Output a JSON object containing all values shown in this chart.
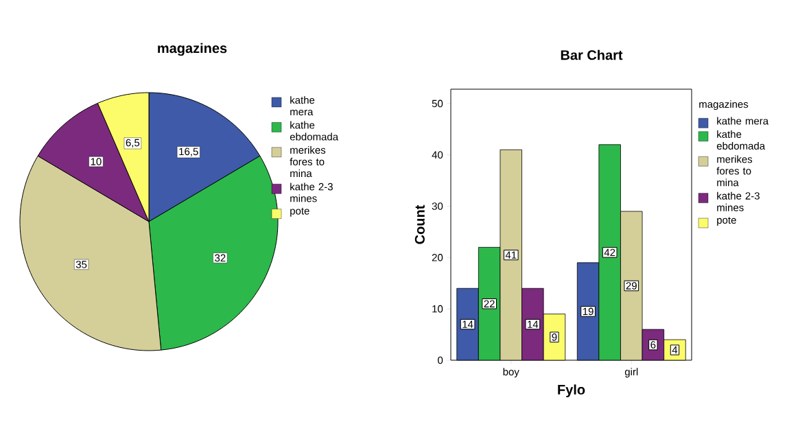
{
  "chart_data": [
    {
      "type": "pie",
      "title": "magazines",
      "categories": [
        "kathe mera",
        "kathe ebdomada",
        "merikes fores to mina",
        "kathe 2-3 mines",
        "pote"
      ],
      "values": [
        16.5,
        32,
        35,
        10,
        6.5
      ],
      "value_labels": [
        "16,5",
        "32",
        "35",
        "10",
        "6,5"
      ],
      "colors": [
        "#3e5aa8",
        "#2db84b",
        "#d4cf99",
        "#7b2a7e",
        "#fcfc6a"
      ],
      "legend": "right"
    },
    {
      "type": "bar",
      "title": "Bar Chart",
      "xlabel": "Fylo",
      "ylabel": "Count",
      "legend_title": "magazines",
      "categories": [
        "boy",
        "girl"
      ],
      "series": [
        {
          "name": "kathe mera",
          "color": "#3e5aa8",
          "values": [
            14,
            19
          ]
        },
        {
          "name": "kathe ebdomada",
          "color": "#2db84b",
          "values": [
            22,
            42
          ]
        },
        {
          "name": "merikes fores to mina",
          "color": "#d4cf99",
          "values": [
            41,
            29
          ]
        },
        {
          "name": "kathe 2-3 mines",
          "color": "#7b2a7e",
          "values": [
            14,
            6
          ]
        },
        {
          "name": "pote",
          "color": "#fcfc6a",
          "values": [
            9,
            4
          ]
        }
      ],
      "ylim": [
        0,
        52.8
      ],
      "yticks": [
        0,
        10,
        20,
        30,
        40,
        50
      ],
      "data_labels": true,
      "legend": "right"
    }
  ]
}
